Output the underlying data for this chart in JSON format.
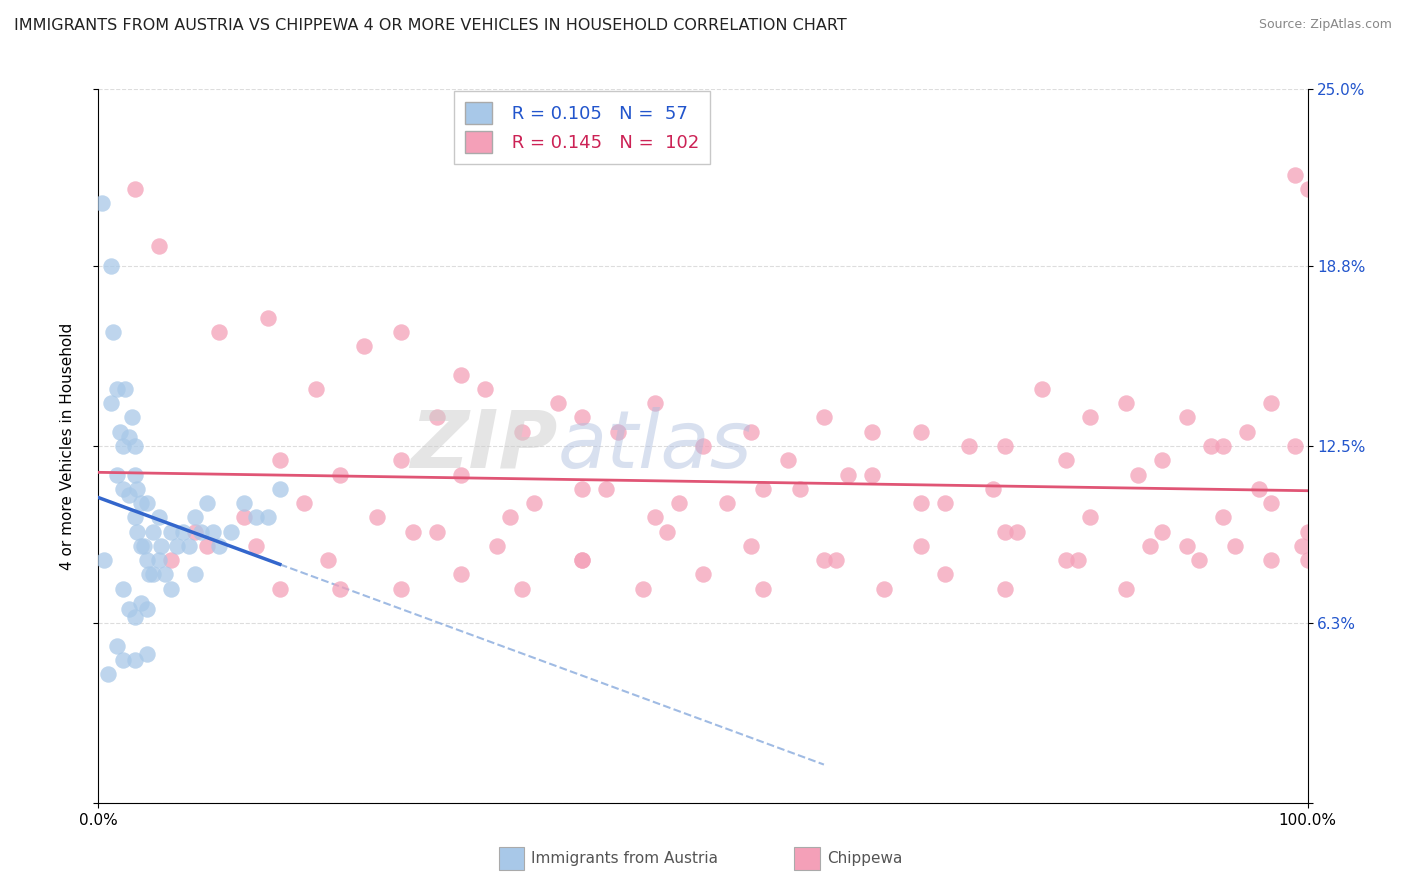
{
  "title": "IMMIGRANTS FROM AUSTRIA VS CHIPPEWA 4 OR MORE VEHICLES IN HOUSEHOLD CORRELATION CHART",
  "source": "Source: ZipAtlas.com",
  "ylabel": "4 or more Vehicles in Household",
  "xlim": [
    0,
    100
  ],
  "ylim": [
    0,
    25
  ],
  "yticks": [
    0,
    6.3,
    12.5,
    18.8,
    25.0
  ],
  "ytick_labels": [
    "",
    "6.3%",
    "12.5%",
    "18.8%",
    "25.0%"
  ],
  "xtick_labels": [
    "0.0%",
    "100.0%"
  ],
  "legend_blue_r": "0.105",
  "legend_blue_n": "57",
  "legend_pink_r": "0.145",
  "legend_pink_n": "102",
  "blue_color": "#a8c8e8",
  "pink_color": "#f4a0b8",
  "blue_line_color": "#3366cc",
  "pink_line_color": "#e05575",
  "watermark_zip": "ZIP",
  "watermark_atlas": "atlas",
  "blue_points_x": [
    0.3,
    0.5,
    0.8,
    1.0,
    1.0,
    1.2,
    1.5,
    1.5,
    1.8,
    2.0,
    2.0,
    2.2,
    2.5,
    2.5,
    2.8,
    3.0,
    3.0,
    3.0,
    3.2,
    3.2,
    3.5,
    3.5,
    3.8,
    4.0,
    4.0,
    4.2,
    4.5,
    4.5,
    5.0,
    5.0,
    5.2,
    5.5,
    6.0,
    6.0,
    6.5,
    7.0,
    7.5,
    8.0,
    8.0,
    8.5,
    9.0,
    9.5,
    10.0,
    11.0,
    12.0,
    13.0,
    14.0,
    15.0,
    2.0,
    2.5,
    3.0,
    3.5,
    4.0,
    1.5,
    2.0,
    3.0,
    4.0
  ],
  "blue_points_y": [
    21.0,
    8.5,
    4.5,
    18.8,
    14.0,
    16.5,
    14.5,
    11.5,
    13.0,
    12.5,
    11.0,
    14.5,
    12.8,
    10.8,
    13.5,
    12.5,
    11.5,
    10.0,
    11.0,
    9.5,
    10.5,
    9.0,
    9.0,
    10.5,
    8.5,
    8.0,
    9.5,
    8.0,
    10.0,
    8.5,
    9.0,
    8.0,
    9.5,
    7.5,
    9.0,
    9.5,
    9.0,
    10.0,
    8.0,
    9.5,
    10.5,
    9.5,
    9.0,
    9.5,
    10.5,
    10.0,
    10.0,
    11.0,
    7.5,
    6.8,
    6.5,
    7.0,
    6.8,
    5.5,
    5.0,
    5.0,
    5.2
  ],
  "pink_points_x": [
    3.0,
    5.0,
    10.0,
    14.0,
    18.0,
    22.0,
    25.0,
    28.0,
    30.0,
    32.0,
    35.0,
    38.0,
    40.0,
    43.0,
    46.0,
    50.0,
    54.0,
    57.0,
    60.0,
    64.0,
    68.0,
    72.0,
    75.0,
    78.0,
    82.0,
    85.0,
    88.0,
    90.0,
    93.0,
    95.0,
    97.0,
    99.0,
    100.0,
    15.0,
    20.0,
    25.0,
    30.0,
    36.0,
    42.0,
    48.0,
    55.0,
    62.0,
    68.0,
    74.0,
    80.0,
    86.0,
    92.0,
    96.0,
    99.0,
    8.0,
    12.0,
    17.0,
    23.0,
    28.0,
    34.0,
    40.0,
    46.0,
    52.0,
    58.0,
    64.0,
    70.0,
    76.0,
    82.0,
    88.0,
    93.0,
    97.0,
    100.0,
    6.0,
    9.0,
    13.0,
    19.0,
    26.0,
    33.0,
    40.0,
    47.0,
    54.0,
    61.0,
    68.0,
    75.0,
    81.0,
    87.0,
    91.0,
    94.0,
    97.0,
    99.5,
    20.0,
    30.0,
    40.0,
    50.0,
    60.0,
    70.0,
    80.0,
    90.0,
    100.0,
    15.0,
    25.0,
    35.0,
    45.0,
    55.0,
    65.0,
    75.0,
    85.0
  ],
  "pink_points_y": [
    21.5,
    19.5,
    16.5,
    17.0,
    14.5,
    16.0,
    16.5,
    13.5,
    15.0,
    14.5,
    13.0,
    14.0,
    13.5,
    13.0,
    14.0,
    12.5,
    13.0,
    12.0,
    13.5,
    13.0,
    13.0,
    12.5,
    12.5,
    14.5,
    13.5,
    14.0,
    12.0,
    13.5,
    12.5,
    13.0,
    14.0,
    22.0,
    21.5,
    12.0,
    11.5,
    12.0,
    11.5,
    10.5,
    11.0,
    10.5,
    11.0,
    11.5,
    10.5,
    11.0,
    12.0,
    11.5,
    12.5,
    11.0,
    12.5,
    9.5,
    10.0,
    10.5,
    10.0,
    9.5,
    10.0,
    11.0,
    10.0,
    10.5,
    11.0,
    11.5,
    10.5,
    9.5,
    10.0,
    9.5,
    10.0,
    10.5,
    9.5,
    8.5,
    9.0,
    9.0,
    8.5,
    9.5,
    9.0,
    8.5,
    9.5,
    9.0,
    8.5,
    9.0,
    9.5,
    8.5,
    9.0,
    8.5,
    9.0,
    8.5,
    9.0,
    7.5,
    8.0,
    8.5,
    8.0,
    8.5,
    8.0,
    8.5,
    9.0,
    8.5,
    7.5,
    7.5,
    7.5,
    7.5,
    7.5,
    7.5,
    7.5,
    7.5
  ]
}
